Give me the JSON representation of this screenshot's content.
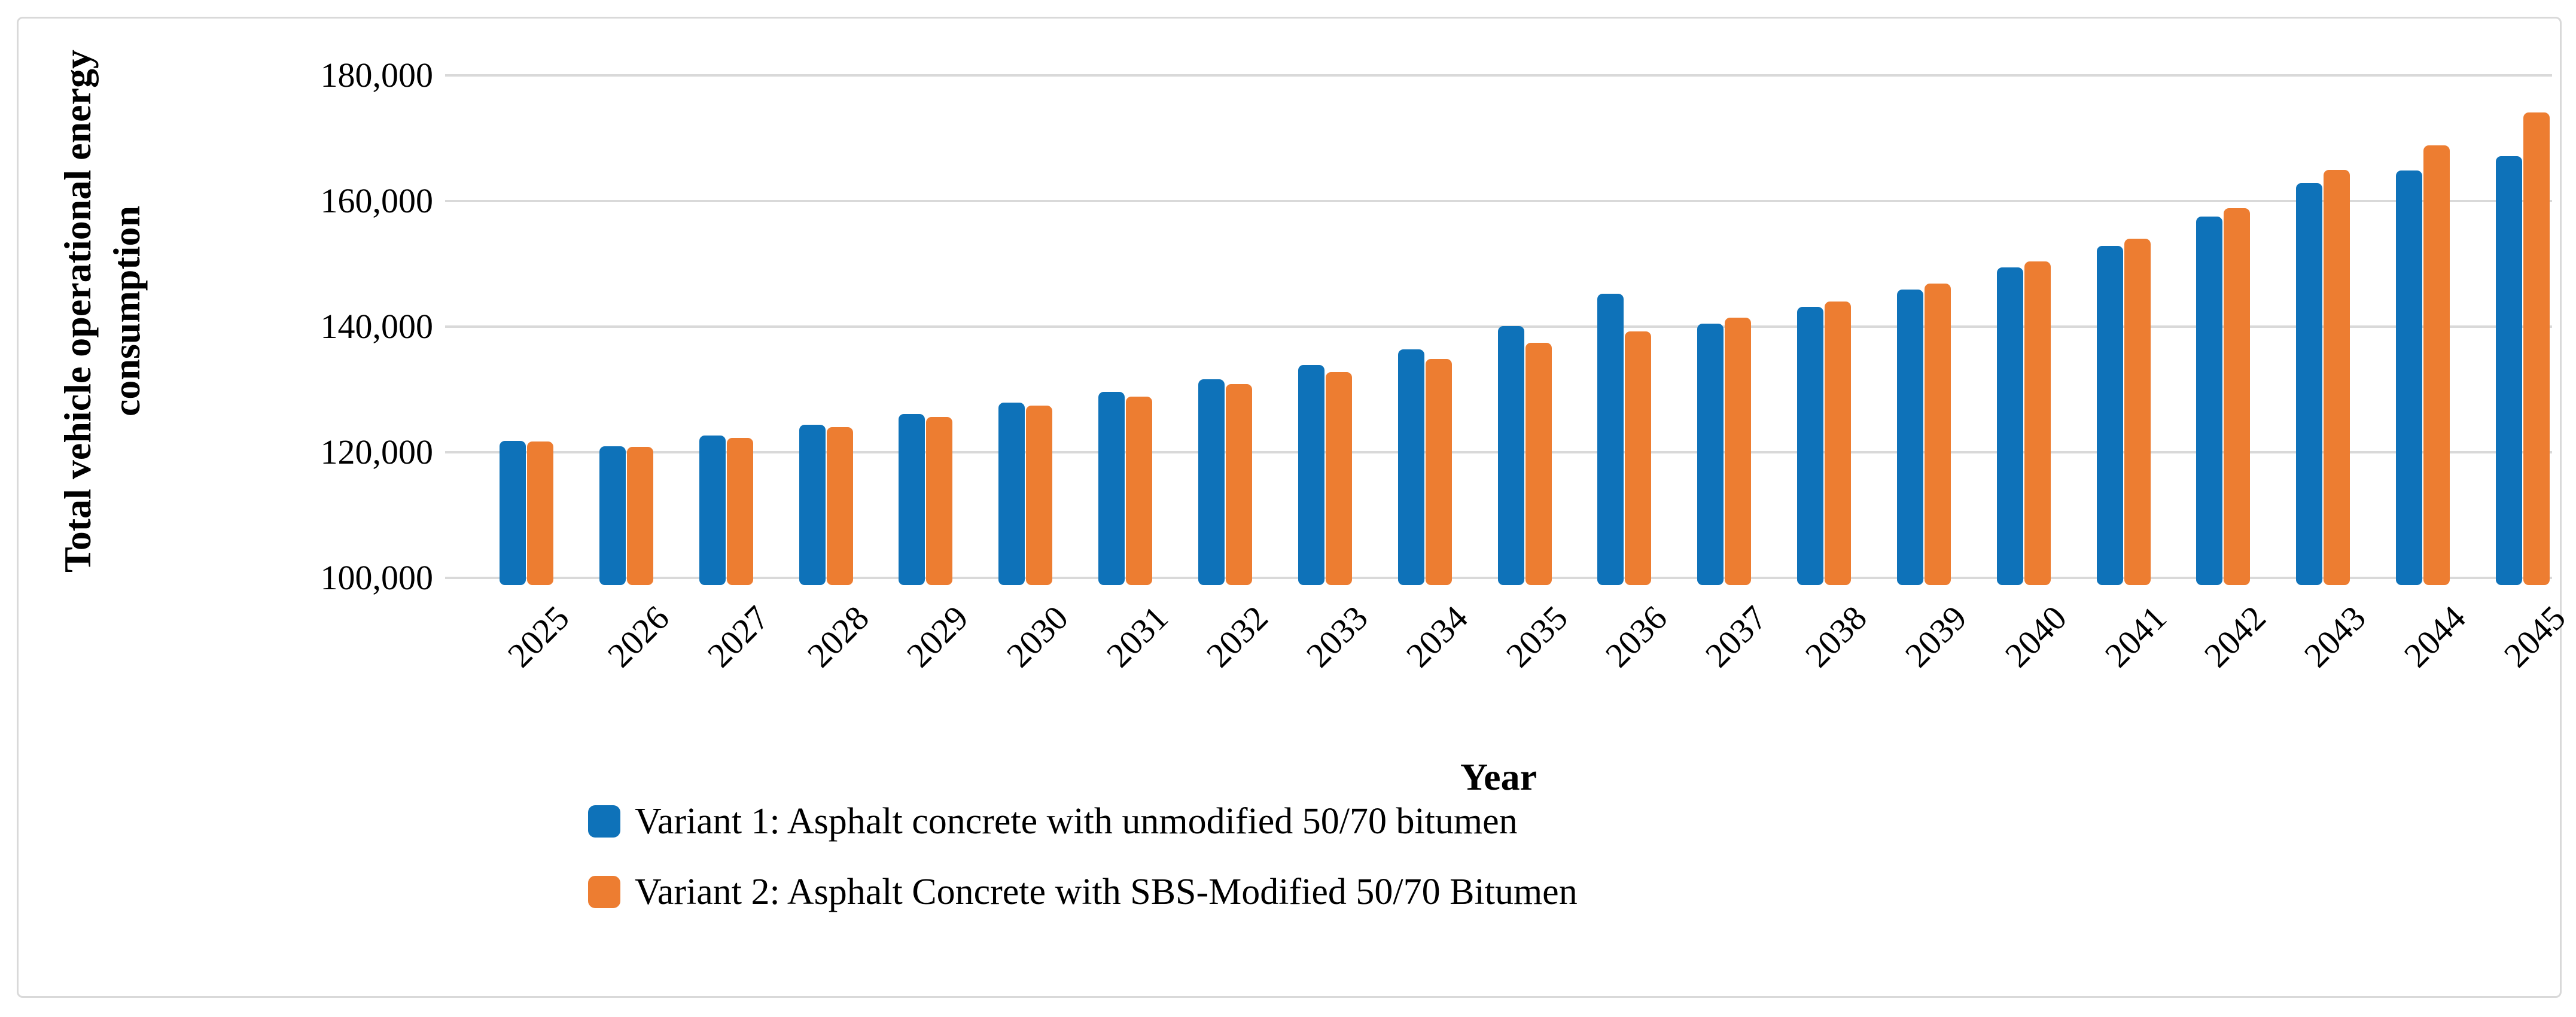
{
  "figure": {
    "y_axis_title_line1": "Total vehicle operational energy",
    "y_axis_title_line2": "consumption",
    "x_axis_title": "Year"
  },
  "colors": {
    "variant1": "#0e72b9",
    "variant2": "#ed7d31",
    "gridline": "#d9d9d9",
    "border": "#d9d9d9",
    "text": "#000000",
    "background": "#ffffff"
  },
  "chart_data": {
    "type": "bar",
    "title": "",
    "xlabel": "Year",
    "ylabel": "Total vehicle operational energy consumption",
    "ylim": [
      100000,
      180000
    ],
    "ytick_step": 20000,
    "ytick_labels": [
      "100,000",
      "120,000",
      "140,000",
      "160,000",
      "180,000"
    ],
    "grid": true,
    "legend_position": "bottom",
    "categories": [
      2025,
      2026,
      2027,
      2028,
      2029,
      2030,
      2031,
      2032,
      2033,
      2034,
      2035,
      2036,
      2037,
      2038,
      2039,
      2040,
      2041,
      2042,
      2043,
      2044,
      2045
    ],
    "series": [
      {
        "name": "Variant 1: Asphalt concrete with unmodified 50/70 bitumen",
        "color": "#0e72b9",
        "values": [
          121800,
          121000,
          122700,
          124400,
          126100,
          127900,
          129600,
          131600,
          133900,
          136400,
          140100,
          145200,
          140500,
          143100,
          145900,
          149400,
          152900,
          157500,
          162900,
          164900,
          167100
        ]
      },
      {
        "name": "Variant 2: Asphalt Concrete with SBS-Modified 50/70 Bitumen",
        "color": "#ed7d31",
        "values": [
          121700,
          120900,
          122300,
          124000,
          125600,
          127400,
          128900,
          130900,
          132800,
          134900,
          137400,
          139200,
          141400,
          144000,
          146900,
          150400,
          154000,
          158900,
          165000,
          168900,
          174100
        ]
      }
    ]
  }
}
